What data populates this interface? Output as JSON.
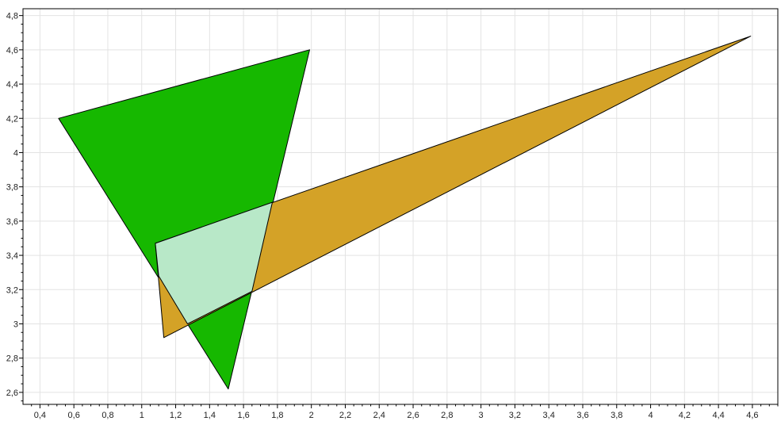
{
  "chart_data": {
    "type": "area",
    "xlim": [
      0.3,
      4.75
    ],
    "ylim": [
      2.53,
      4.84
    ],
    "x_ticks": [
      "0,4",
      "0,6",
      "0,8",
      "1",
      "1,2",
      "1,4",
      "1,6",
      "1,8",
      "2",
      "2,2",
      "2,4",
      "2,6",
      "2,8",
      "3",
      "3,2",
      "3,4",
      "3,6",
      "3,8",
      "4",
      "4,2",
      "4,4",
      "4,6"
    ],
    "y_ticks": [
      "2,6",
      "2,8",
      "3",
      "3,2",
      "3,4",
      "3,6",
      "3,8",
      "4",
      "4,2",
      "4,4",
      "4,6",
      "4,8"
    ],
    "x_tick_values": [
      0.4,
      0.6,
      0.8,
      1.0,
      1.2,
      1.4,
      1.6,
      1.8,
      2.0,
      2.2,
      2.4,
      2.6,
      2.8,
      3.0,
      3.2,
      3.4,
      3.6,
      3.8,
      4.0,
      4.2,
      4.4,
      4.6
    ],
    "y_tick_values": [
      2.6,
      2.8,
      3.0,
      3.2,
      3.4,
      3.6,
      3.8,
      4.0,
      4.2,
      4.4,
      4.6,
      4.8
    ],
    "grid": true,
    "series": [
      {
        "color": "#16b800",
        "points": [
          [
            0.51,
            4.2
          ],
          [
            1.99,
            4.6
          ],
          [
            1.51,
            2.62
          ]
        ]
      },
      {
        "color": "#d4a227",
        "points": [
          [
            1.08,
            3.47
          ],
          [
            4.59,
            4.68
          ],
          [
            1.13,
            2.92
          ]
        ]
      },
      {
        "color": "#b8e8c8",
        "points": [
          [
            1.08,
            3.47
          ],
          [
            1.77,
            3.71
          ],
          [
            1.65,
            3.19
          ],
          [
            1.27,
            3.0
          ],
          [
            1.1,
            3.28
          ]
        ]
      }
    ]
  }
}
